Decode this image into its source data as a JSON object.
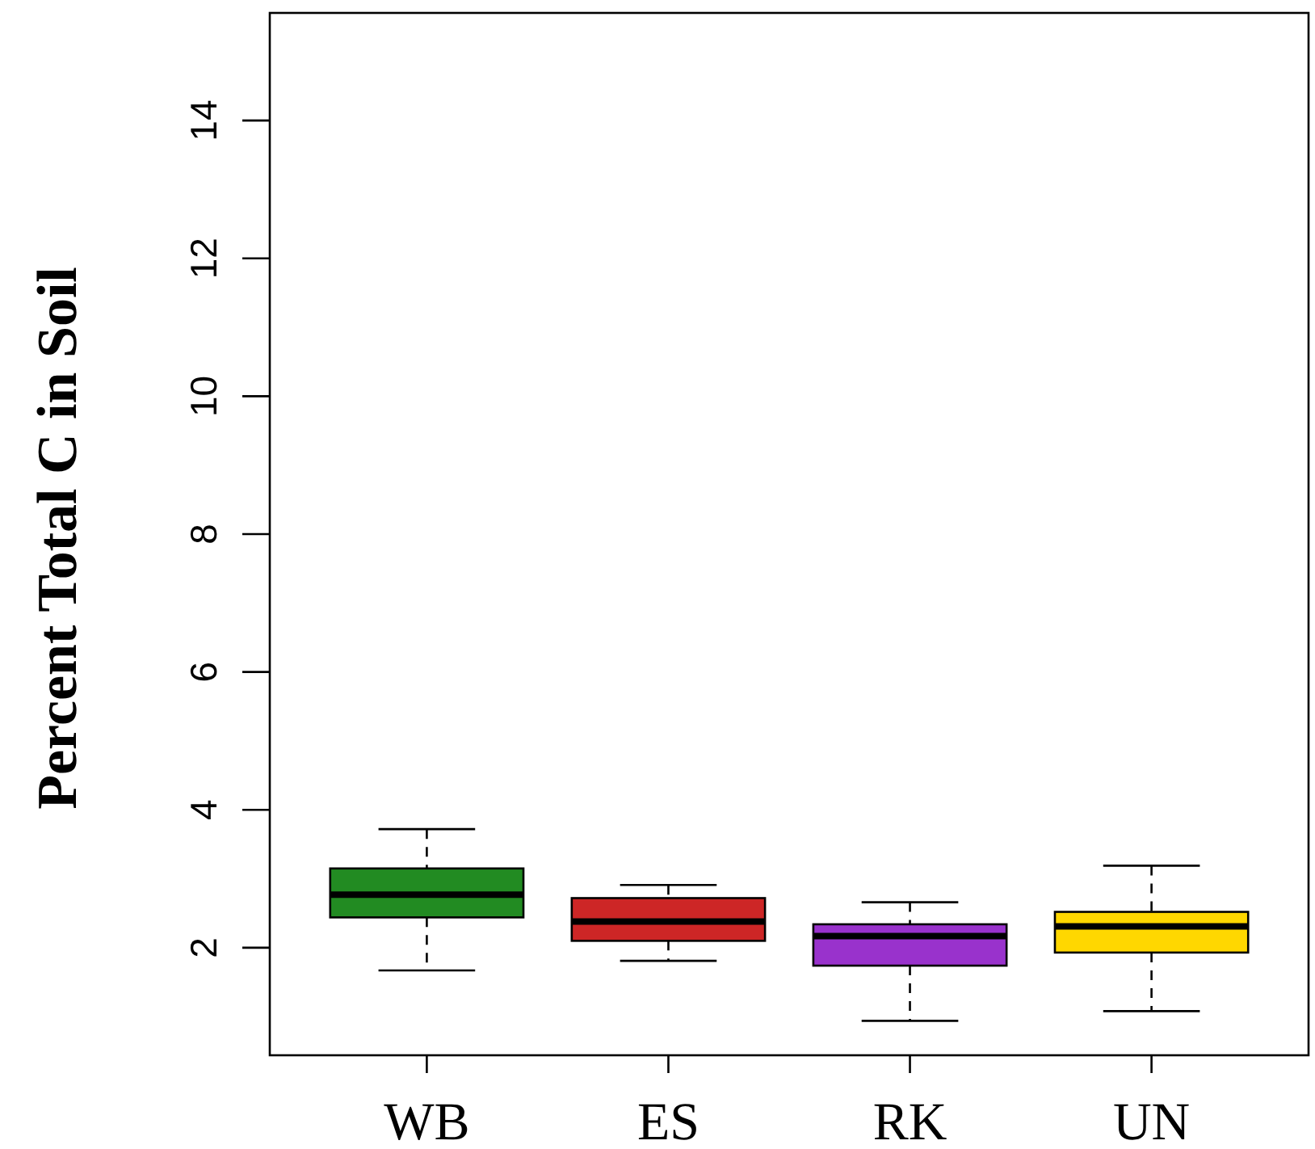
{
  "chart_data": {
    "type": "box",
    "ylabel": "Percent Total C in Soil",
    "categories": [
      "WB",
      "ES",
      "RK",
      "UN"
    ],
    "boxes": [
      {
        "low": 1.67,
        "q1": 2.44,
        "median": 2.77,
        "q3": 3.15,
        "high": 3.72
      },
      {
        "low": 1.81,
        "q1": 2.1,
        "median": 2.38,
        "q3": 2.72,
        "high": 2.91
      },
      {
        "low": 0.94,
        "q1": 1.74,
        "median": 2.17,
        "q3": 2.34,
        "high": 2.66
      },
      {
        "low": 1.08,
        "q1": 1.93,
        "median": 2.31,
        "q3": 2.52,
        "high": 3.19
      }
    ],
    "colors": [
      "#228b22",
      "#cd2626",
      "#9932cc",
      "#ffd700"
    ],
    "ylim": [
      0.44,
      15.56
    ],
    "yticks": [
      2,
      4,
      6,
      8,
      10,
      12,
      14
    ],
    "line_style": "dashed"
  }
}
